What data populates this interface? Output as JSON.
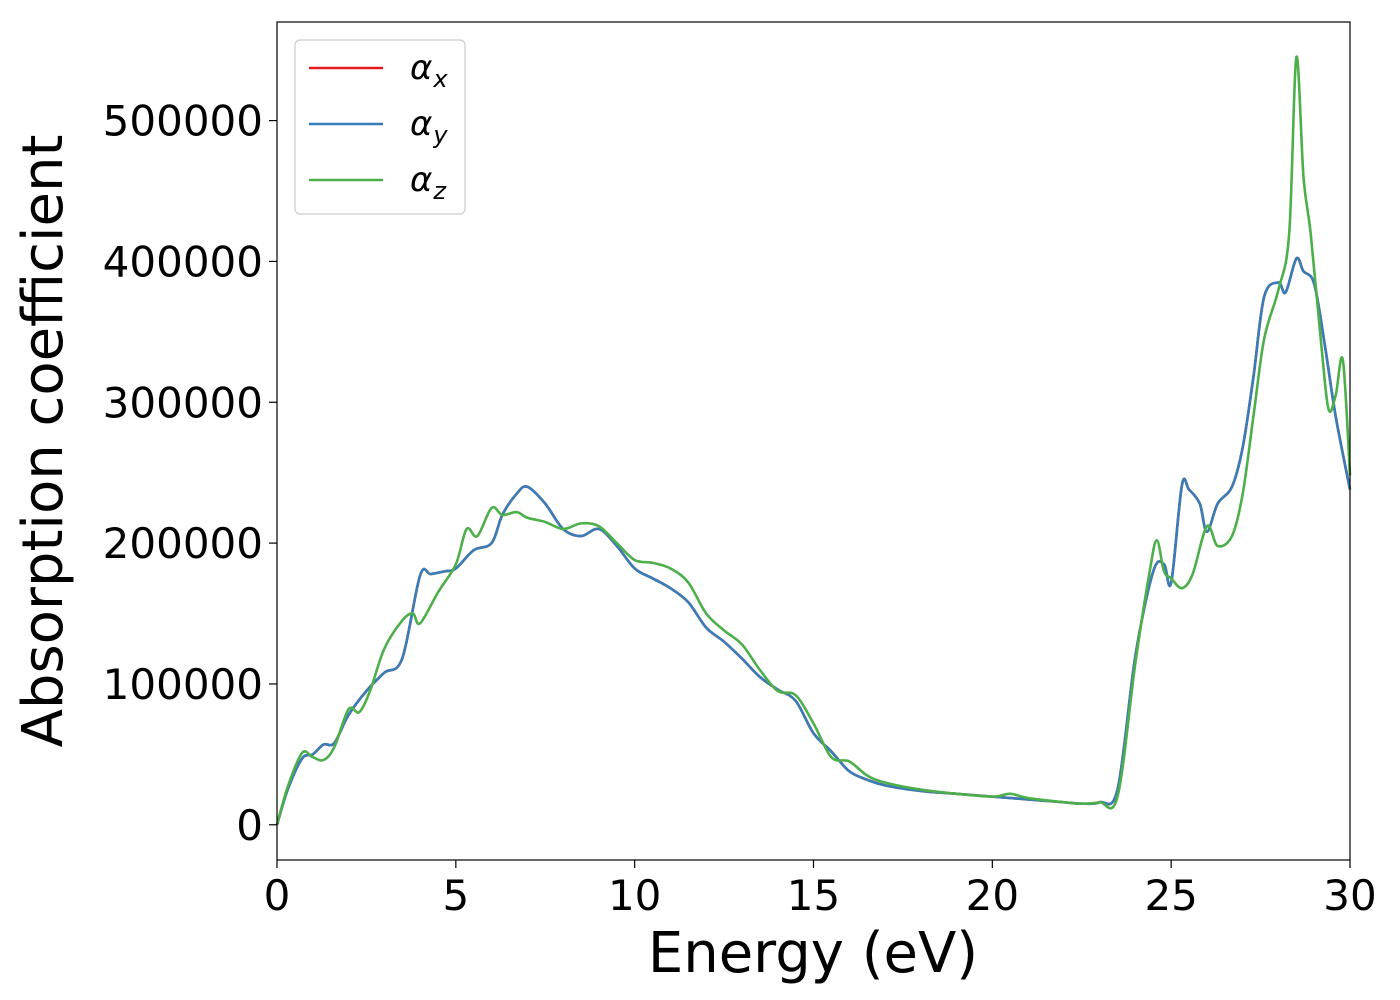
{
  "chart_data": {
    "type": "line",
    "title": "",
    "xlabel": "Energy (eV)",
    "ylabel": "Absorption coefficient",
    "xlim": [
      0,
      30
    ],
    "ylim": [
      -25000,
      570000
    ],
    "xticks": [
      0,
      5,
      10,
      15,
      20,
      25,
      30
    ],
    "yticks": [
      0,
      100000,
      200000,
      300000,
      400000,
      500000
    ],
    "grid": false,
    "legend_position": "top-left",
    "series": [
      {
        "name": "αx",
        "name_base": "α",
        "name_sub": "x",
        "color": "#e41a1c",
        "x": [
          0,
          0.3,
          0.7,
          1.0,
          1.3,
          1.6,
          2.0,
          2.5,
          3.0,
          3.5,
          4.0,
          4.3,
          4.7,
          5.0,
          5.5,
          6.0,
          6.3,
          6.7,
          7.0,
          7.5,
          8.0,
          8.5,
          9.0,
          9.5,
          10.0,
          10.5,
          11.0,
          11.5,
          12.0,
          12.5,
          13.0,
          13.5,
          14.0,
          14.5,
          15.0,
          15.5,
          16.0,
          16.5,
          17.0,
          18.0,
          19.0,
          20.0,
          21.0,
          22.0,
          22.5,
          23.0,
          23.5,
          24.0,
          24.5,
          24.8,
          25.0,
          25.3,
          25.5,
          25.8,
          26.0,
          26.3,
          26.7,
          27.0,
          27.3,
          27.6,
          28.0,
          28.2,
          28.5,
          28.7,
          29.0,
          29.3,
          29.6,
          30.0
        ],
        "values": [
          0,
          25000,
          47000,
          50000,
          57000,
          58000,
          78000,
          95000,
          108000,
          118000,
          177000,
          178000,
          180000,
          182000,
          195000,
          200000,
          220000,
          235000,
          240000,
          228000,
          210000,
          205000,
          210000,
          198000,
          182000,
          175000,
          168000,
          158000,
          140000,
          130000,
          118000,
          105000,
          96000,
          88000,
          65000,
          52000,
          38000,
          32000,
          28000,
          24000,
          22000,
          20000,
          18000,
          16000,
          15000,
          16000,
          25000,
          120000,
          180000,
          185000,
          172000,
          241000,
          238000,
          228000,
          208000,
          228000,
          240000,
          268000,
          318000,
          375000,
          385000,
          378000,
          402000,
          393000,
          384000,
          340000,
          290000,
          238000
        ]
      },
      {
        "name": "αy",
        "name_base": "α",
        "name_sub": "y",
        "color": "#377eb8",
        "x": [
          0,
          0.3,
          0.7,
          1.0,
          1.3,
          1.6,
          2.0,
          2.5,
          3.0,
          3.5,
          4.0,
          4.3,
          4.7,
          5.0,
          5.5,
          6.0,
          6.3,
          6.7,
          7.0,
          7.5,
          8.0,
          8.5,
          9.0,
          9.5,
          10.0,
          10.5,
          11.0,
          11.5,
          12.0,
          12.5,
          13.0,
          13.5,
          14.0,
          14.5,
          15.0,
          15.5,
          16.0,
          16.5,
          17.0,
          18.0,
          19.0,
          20.0,
          21.0,
          22.0,
          22.5,
          23.0,
          23.5,
          24.0,
          24.5,
          24.8,
          25.0,
          25.3,
          25.5,
          25.8,
          26.0,
          26.3,
          26.7,
          27.0,
          27.3,
          27.6,
          28.0,
          28.2,
          28.5,
          28.7,
          29.0,
          29.3,
          29.6,
          30.0
        ],
        "values": [
          0,
          25000,
          47000,
          50000,
          57000,
          58000,
          78000,
          95000,
          108000,
          118000,
          177000,
          178000,
          180000,
          182000,
          195000,
          200000,
          220000,
          235000,
          240000,
          228000,
          210000,
          205000,
          210000,
          198000,
          182000,
          175000,
          168000,
          158000,
          140000,
          130000,
          118000,
          105000,
          96000,
          88000,
          65000,
          52000,
          38000,
          32000,
          28000,
          24000,
          22000,
          20000,
          18000,
          16000,
          15000,
          16000,
          25000,
          120000,
          180000,
          185000,
          172000,
          241000,
          238000,
          228000,
          208000,
          228000,
          240000,
          268000,
          318000,
          375000,
          385000,
          378000,
          402000,
          393000,
          384000,
          340000,
          290000,
          238000
        ]
      },
      {
        "name": "αz",
        "name_base": "α",
        "name_sub": "z",
        "color": "#4daf4a",
        "x": [
          0,
          0.3,
          0.7,
          1.0,
          1.3,
          1.6,
          2.0,
          2.3,
          2.6,
          3.0,
          3.5,
          3.8,
          4.0,
          4.5,
          5.0,
          5.3,
          5.6,
          6.0,
          6.3,
          6.7,
          7.0,
          7.5,
          8.0,
          8.5,
          9.0,
          9.5,
          10.0,
          10.5,
          11.0,
          11.5,
          12.0,
          12.5,
          13.0,
          13.5,
          14.0,
          14.5,
          15.0,
          15.5,
          16.0,
          16.5,
          17.0,
          18.0,
          19.0,
          20.0,
          20.5,
          21.0,
          22.0,
          22.5,
          23.0,
          23.5,
          24.0,
          24.4,
          24.6,
          24.8,
          25.0,
          25.3,
          25.6,
          26.0,
          26.3,
          26.7,
          27.0,
          27.3,
          27.6,
          28.0,
          28.3,
          28.5,
          28.7,
          28.9,
          29.2,
          29.4,
          29.6,
          29.8,
          30.0
        ],
        "values": [
          0,
          27000,
          51000,
          48000,
          46000,
          55000,
          82000,
          80000,
          95000,
          125000,
          145000,
          150000,
          143000,
          165000,
          185000,
          210000,
          205000,
          225000,
          220000,
          222000,
          218000,
          215000,
          210000,
          214000,
          212000,
          200000,
          188000,
          186000,
          182000,
          172000,
          150000,
          138000,
          128000,
          110000,
          95000,
          92000,
          72000,
          48000,
          45000,
          35000,
          30000,
          25000,
          22000,
          20000,
          22000,
          19000,
          16000,
          15000,
          16000,
          20000,
          115000,
          180000,
          202000,
          180000,
          175000,
          168000,
          178000,
          212000,
          198000,
          205000,
          235000,
          290000,
          345000,
          380000,
          420000,
          545000,
          460000,
          420000,
          340000,
          295000,
          305000,
          330000,
          248000
        ]
      }
    ]
  }
}
